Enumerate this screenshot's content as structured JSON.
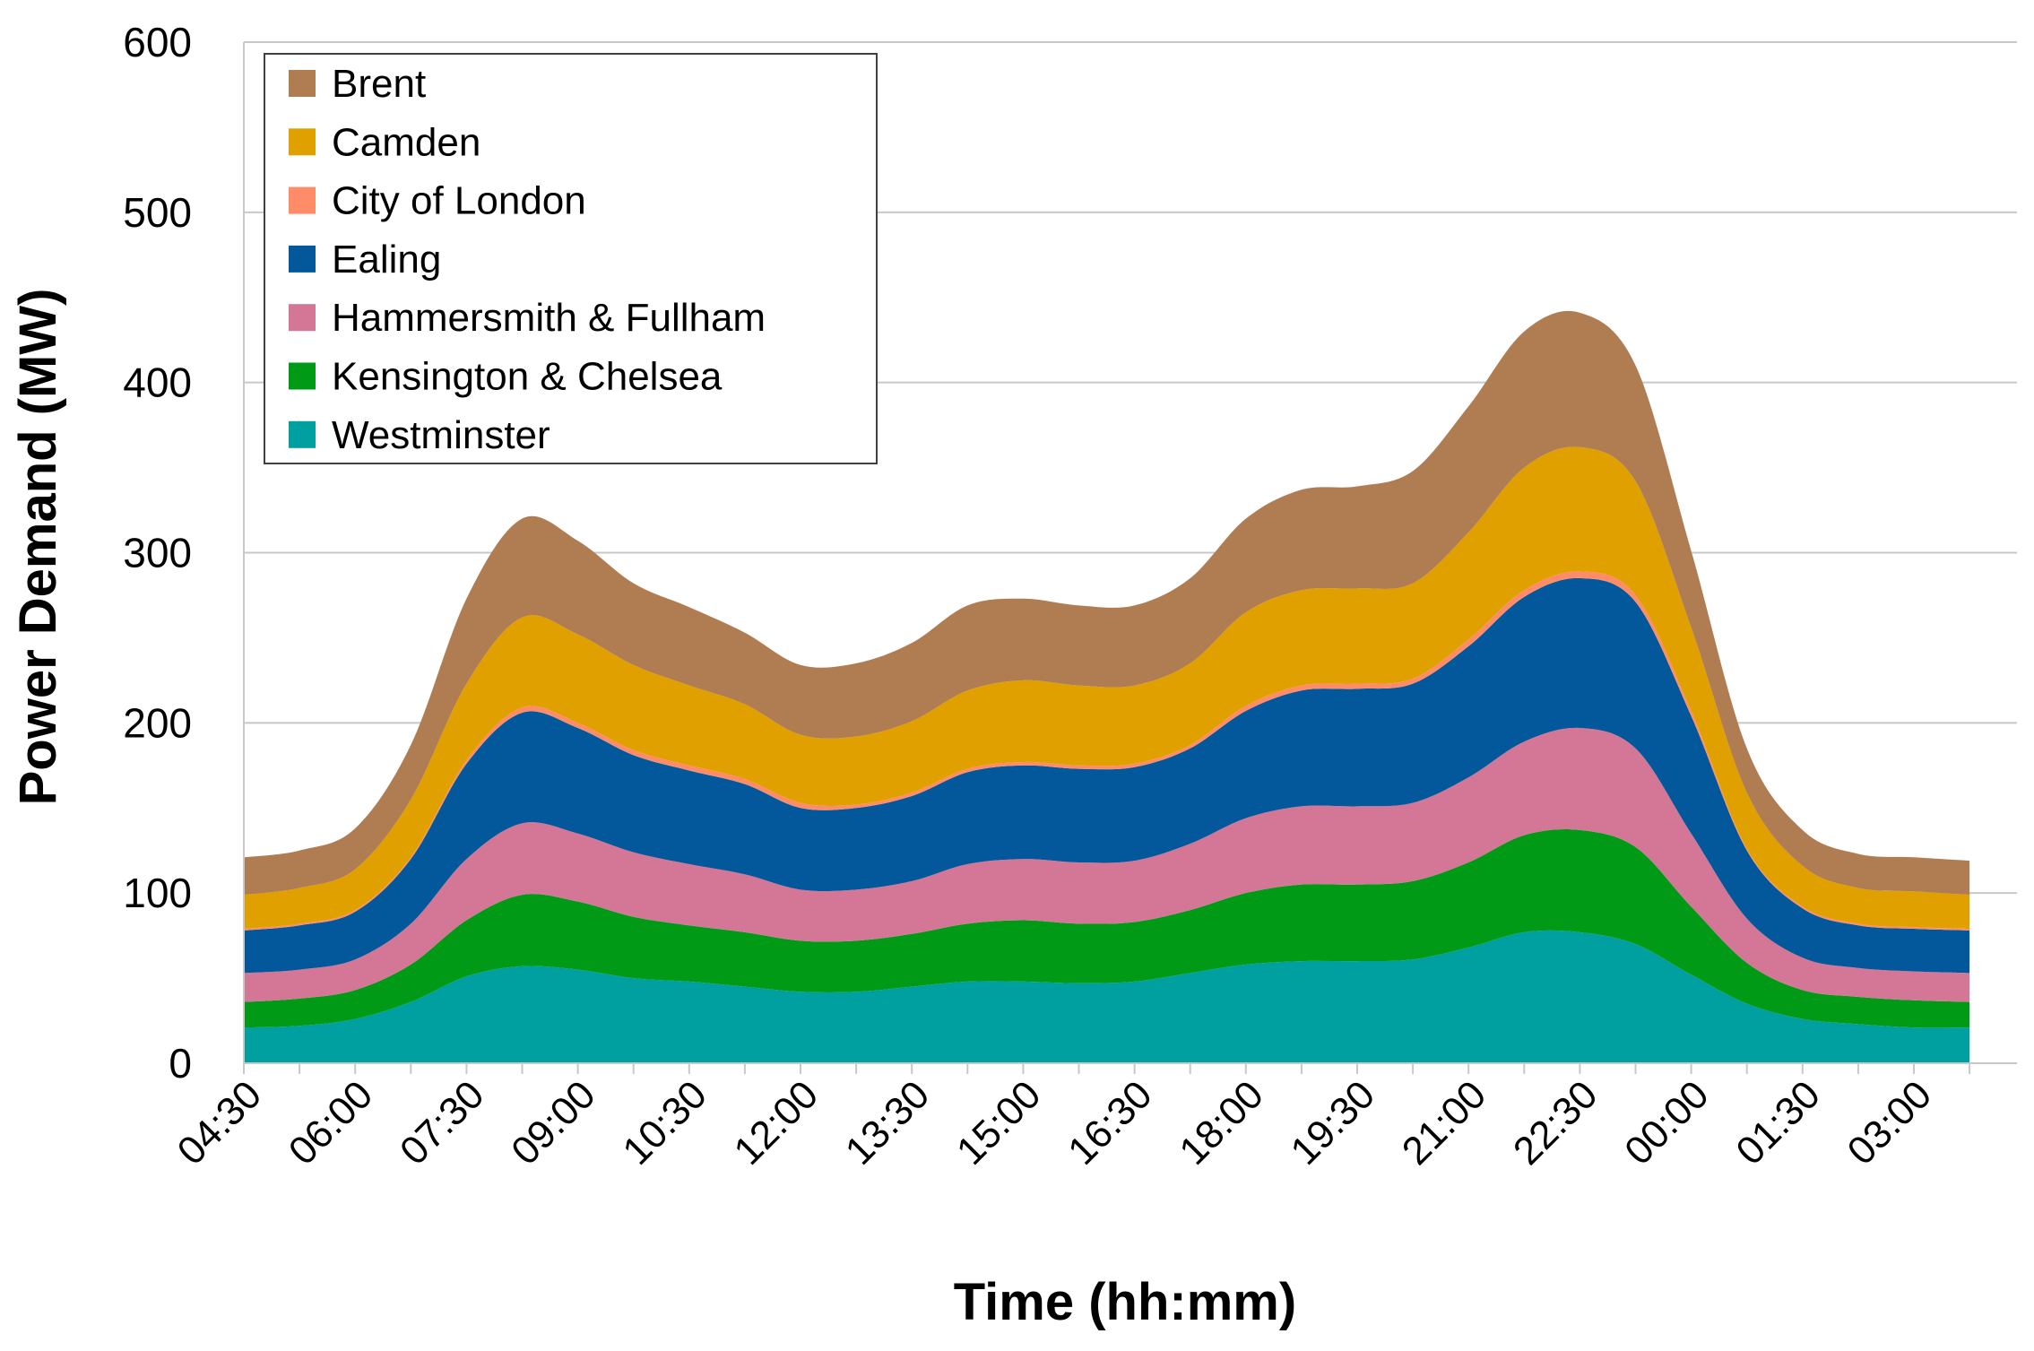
{
  "chart_data": {
    "type": "area",
    "stacked": true,
    "title": "",
    "xlabel": "Time (hh:mm)",
    "ylabel": "Power Demand (MW)",
    "ylim": [
      0,
      600
    ],
    "yticks": [
      0,
      100,
      200,
      300,
      400,
      500,
      600
    ],
    "grid": true,
    "legend": "top-left",
    "x_points": [
      "04:30",
      "05:15",
      "06:00",
      "06:45",
      "07:30",
      "08:15",
      "09:00",
      "09:45",
      "10:30",
      "11:15",
      "12:00",
      "12:45",
      "13:30",
      "14:15",
      "15:00",
      "15:45",
      "16:30",
      "17:15",
      "18:00",
      "18:45",
      "19:30",
      "20:15",
      "21:00",
      "21:45",
      "22:30",
      "23:15",
      "00:00",
      "00:45",
      "01:30",
      "02:15",
      "03:00",
      "03:45"
    ],
    "x_tick_labels": [
      "04:30",
      "06:00",
      "07:30",
      "09:00",
      "10:30",
      "12:00",
      "13:30",
      "15:00",
      "16:30",
      "18:00",
      "19:30",
      "21:00",
      "22:30",
      "00:00",
      "01:30",
      "03:00"
    ],
    "series": [
      {
        "name": "Westminster",
        "color": "#00A0A0",
        "values": [
          21,
          22,
          26,
          36,
          51,
          57,
          55,
          50,
          48,
          45,
          42,
          42,
          45,
          48,
          48,
          47,
          48,
          53,
          58,
          60,
          60,
          61,
          68,
          77,
          77,
          70,
          52,
          35,
          26,
          23,
          21,
          21
        ]
      },
      {
        "name": "Kensington & Chelsea",
        "color": "#009A17",
        "values": [
          15,
          16,
          17,
          22,
          33,
          42,
          40,
          36,
          33,
          32,
          30,
          30,
          31,
          34,
          36,
          35,
          35,
          37,
          42,
          45,
          45,
          46,
          50,
          57,
          60,
          57,
          40,
          24,
          17,
          16,
          16,
          15
        ]
      },
      {
        "name": "Hammersmith & Fullham",
        "color": "#D47696",
        "values": [
          17,
          17,
          18,
          24,
          36,
          42,
          40,
          38,
          36,
          34,
          30,
          30,
          31,
          35,
          36,
          36,
          36,
          39,
          44,
          46,
          46,
          46,
          50,
          55,
          60,
          58,
          43,
          26,
          19,
          17,
          17,
          17
        ]
      },
      {
        "name": "Ealing",
        "color": "#02589A",
        "values": [
          25,
          26,
          28,
          38,
          56,
          65,
          62,
          57,
          55,
          53,
          48,
          48,
          50,
          54,
          55,
          55,
          55,
          56,
          63,
          68,
          69,
          70,
          77,
          85,
          88,
          86,
          69,
          40,
          29,
          25,
          25,
          25
        ]
      },
      {
        "name": "City of London",
        "color": "#FF8C69",
        "values": [
          1,
          1,
          1,
          1,
          2,
          3,
          3,
          3,
          3,
          3,
          3,
          2,
          2,
          2,
          2,
          2,
          2,
          2,
          3,
          3,
          3,
          3,
          4,
          4,
          4,
          4,
          3,
          1,
          1,
          1,
          1,
          1
        ]
      },
      {
        "name": "Camden",
        "color": "#E0A000",
        "values": [
          20,
          21,
          24,
          34,
          45,
          53,
          52,
          50,
          47,
          44,
          40,
          40,
          42,
          46,
          48,
          47,
          46,
          48,
          55,
          56,
          56,
          56,
          63,
          72,
          73,
          67,
          49,
          33,
          24,
          21,
          21,
          20
        ]
      },
      {
        "name": "Brent",
        "color": "#B07C52",
        "values": [
          22,
          22,
          24,
          32,
          50,
          58,
          55,
          48,
          46,
          42,
          41,
          43,
          46,
          50,
          48,
          47,
          47,
          50,
          55,
          59,
          60,
          66,
          74,
          80,
          79,
          68,
          45,
          26,
          21,
          20,
          20,
          20
        ]
      }
    ]
  }
}
